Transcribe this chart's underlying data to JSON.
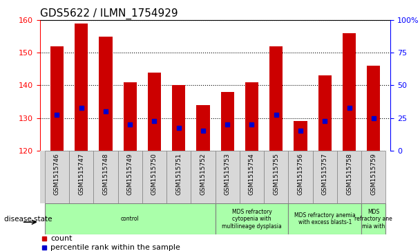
{
  "title": "GDS5622 / ILMN_1754929",
  "samples": [
    "GSM1515746",
    "GSM1515747",
    "GSM1515748",
    "GSM1515749",
    "GSM1515750",
    "GSM1515751",
    "GSM1515752",
    "GSM1515753",
    "GSM1515754",
    "GSM1515755",
    "GSM1515756",
    "GSM1515757",
    "GSM1515758",
    "GSM1515759"
  ],
  "counts": [
    152,
    159,
    155,
    141,
    144,
    140,
    134,
    138,
    141,
    152,
    129,
    143,
    156,
    146
  ],
  "percentile_ranks": [
    131,
    133,
    132,
    128,
    129,
    127,
    126,
    128,
    128,
    131,
    126,
    129,
    133,
    130
  ],
  "ymin": 120,
  "ymax": 160,
  "y2min": 0,
  "y2max": 100,
  "yticks": [
    120,
    130,
    140,
    150,
    160
  ],
  "y2ticks": [
    0,
    25,
    50,
    75,
    100
  ],
  "bar_color": "#cc0000",
  "percentile_color": "#0000cc",
  "disease_groups": [
    {
      "label": "control",
      "start": 0,
      "end": 7
    },
    {
      "label": "MDS refractory\ncytopenia with\nmultilineage dysplasia",
      "start": 7,
      "end": 10
    },
    {
      "label": "MDS refractory anemia\nwith excess blasts-1",
      "start": 10,
      "end": 13
    },
    {
      "label": "MDS\nrefractory ane\nmia with",
      "start": 13,
      "end": 14
    }
  ],
  "xlabel_disease_state": "disease state",
  "legend_count": "count",
  "legend_percentile": "percentile rank within the sample"
}
